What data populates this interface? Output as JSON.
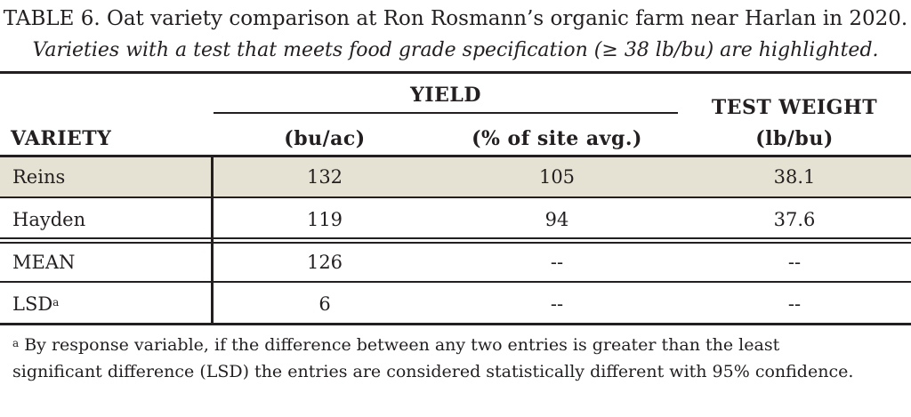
{
  "table": {
    "title": "TABLE 6. Oat variety comparison at Ron Rosmann’s organic farm near Harlan in 2020.",
    "subtitle": "Varieties with a test that meets food grade specification (≥ 38 lb/bu) are highlighted.",
    "headers": {
      "variety": "VARIETY",
      "yield_group": "YIELD",
      "yield_bu_ac": "(bu/ac)",
      "yield_pct": "(% of site avg.)",
      "test_weight": "TEST WEIGHT",
      "test_weight_unit": "(lb/bu)"
    },
    "rows": [
      {
        "variety": "Reins",
        "yield_bu_ac": "132",
        "yield_pct": "105",
        "test_weight": "38.1",
        "highlighted": true
      },
      {
        "variety": "Hayden",
        "yield_bu_ac": "119",
        "yield_pct": "94",
        "test_weight": "37.6",
        "highlighted": false
      }
    ],
    "summary_rows": [
      {
        "label": "MEAN",
        "sup": "",
        "yield_bu_ac": "126",
        "yield_pct": "--",
        "test_weight": "--"
      },
      {
        "label": "LSD",
        "sup": "a",
        "yield_bu_ac": "6",
        "yield_pct": "--",
        "test_weight": "--"
      }
    ],
    "footnote": {
      "marker": "a",
      "line1": "By response variable, if the difference between any two entries is greater than the least",
      "line2": "significant difference (LSD) the entries are considered statistically different with 95% confidence."
    },
    "colors": {
      "text": "#231f20",
      "highlight": "#e6e2d3",
      "rule": "#231f20"
    }
  }
}
